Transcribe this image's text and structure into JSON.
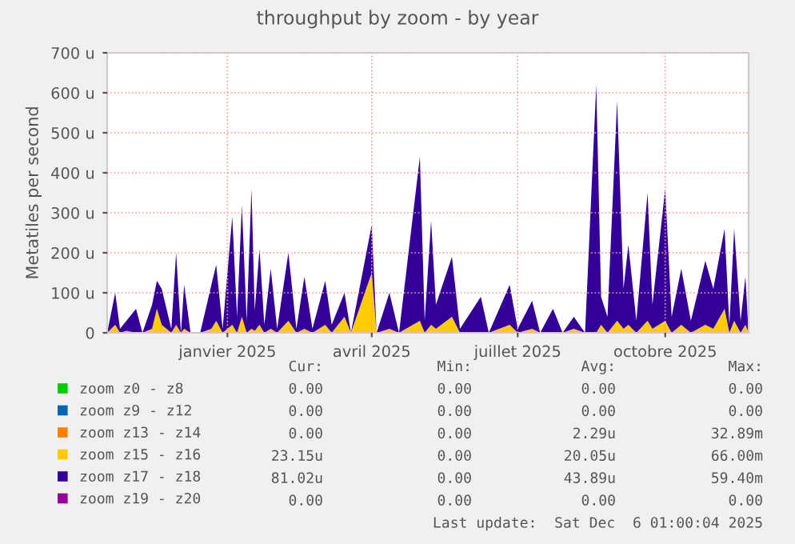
{
  "chart_data": {
    "type": "area",
    "stacked": true,
    "title": "throughput by zoom - by year",
    "ylabel": "Metatiles per second",
    "x": [
      "2024-11-01",
      "2024-11-06",
      "2024-11-09",
      "2024-11-13",
      "2024-11-19",
      "2024-11-23",
      "2024-11-29",
      "2024-12-02",
      "2024-12-05",
      "2024-12-11",
      "2024-12-14",
      "2024-12-17",
      "2024-12-19",
      "2024-12-23",
      "2024-12-29",
      "2025-01-05",
      "2025-01-08",
      "2025-01-12",
      "2025-01-18",
      "2025-01-21",
      "2025-01-24",
      "2025-01-27",
      "2025-01-30",
      "2025-02-01",
      "2025-02-04",
      "2025-02-07",
      "2025-02-11",
      "2025-02-15",
      "2025-02-22",
      "2025-02-27",
      "2025-03-04",
      "2025-03-09",
      "2025-03-17",
      "2025-03-21",
      "2025-03-29",
      "2025-04-02",
      "2025-04-15",
      "2025-04-18",
      "2025-04-26",
      "2025-05-02",
      "2025-05-15",
      "2025-05-18",
      "2025-05-22",
      "2025-05-25",
      "2025-06-04",
      "2025-06-09",
      "2025-06-22",
      "2025-06-27",
      "2025-07-10",
      "2025-07-15",
      "2025-07-24",
      "2025-07-29",
      "2025-08-06",
      "2025-08-12",
      "2025-08-19",
      "2025-08-26",
      "2025-09-02",
      "2025-09-05",
      "2025-09-09",
      "2025-09-15",
      "2025-09-19",
      "2025-09-22",
      "2025-09-27",
      "2025-10-04",
      "2025-10-07",
      "2025-10-15",
      "2025-10-19",
      "2025-10-25",
      "2025-10-31",
      "2025-11-09",
      "2025-11-14",
      "2025-11-21",
      "2025-11-24",
      "2025-11-27",
      "2025-12-01",
      "2025-12-04",
      "2025-12-06"
    ],
    "series": [
      {
        "name": "zoom z0 - z8",
        "color": "#00cc00",
        "values": [
          null,
          null,
          null,
          null,
          null,
          null,
          null,
          null,
          null,
          null,
          null,
          null,
          null,
          null,
          null,
          null,
          null,
          null,
          null,
          null,
          null,
          null,
          null,
          null,
          null,
          null,
          null,
          null,
          null,
          null,
          null,
          null,
          null,
          null,
          null,
          null,
          null,
          null,
          null,
          null,
          null,
          null,
          null,
          null,
          null,
          null,
          null,
          null,
          null,
          null,
          null,
          null,
          null,
          null,
          null,
          null,
          null,
          null,
          null,
          null,
          null,
          null,
          null,
          null,
          null,
          null,
          null,
          null,
          null,
          null,
          null,
          null,
          null,
          null,
          null,
          null,
          null
        ]
      },
      {
        "name": "zoom z9 - z12",
        "color": "#0066b3",
        "values": [
          null,
          null,
          null,
          null,
          null,
          null,
          null,
          null,
          null,
          null,
          null,
          null,
          null,
          null,
          null,
          null,
          null,
          null,
          null,
          null,
          null,
          null,
          null,
          null,
          null,
          null,
          null,
          null,
          null,
          null,
          null,
          null,
          null,
          null,
          null,
          null,
          null,
          null,
          null,
          null,
          null,
          null,
          null,
          null,
          null,
          null,
          null,
          null,
          null,
          null,
          null,
          null,
          null,
          null,
          null,
          null,
          null,
          null,
          null,
          null,
          null,
          null,
          null,
          null,
          null,
          null,
          null,
          null,
          null,
          null,
          null,
          null,
          null,
          null,
          null,
          null,
          null
        ]
      },
      {
        "name": "zoom z13 - z14",
        "color": "#ff8000",
        "values": [
          null,
          null,
          null,
          null,
          null,
          null,
          null,
          null,
          null,
          null,
          null,
          null,
          null,
          null,
          null,
          null,
          null,
          null,
          null,
          null,
          null,
          null,
          null,
          null,
          null,
          null,
          null,
          null,
          null,
          null,
          null,
          null,
          null,
          null,
          null,
          null,
          null,
          null,
          null,
          null,
          null,
          null,
          null,
          null,
          null,
          null,
          null,
          null,
          null,
          null,
          null,
          null,
          null,
          null,
          null,
          null,
          null,
          null,
          null,
          null,
          null,
          null,
          null,
          null,
          null,
          null,
          null,
          null,
          null,
          null,
          null,
          null,
          null,
          null,
          null,
          null,
          null
        ]
      },
      {
        "name": "zoom z15 - z16",
        "color": "#ffcc00",
        "values": [
          0,
          20,
          0,
          5,
          0,
          0,
          10,
          60,
          20,
          0,
          20,
          0,
          10,
          0,
          0,
          10,
          30,
          0,
          20,
          0,
          40,
          0,
          10,
          5,
          20,
          0,
          10,
          0,
          30,
          0,
          10,
          0,
          20,
          0,
          40,
          0,
          150,
          0,
          10,
          0,
          30,
          0,
          20,
          10,
          40,
          0,
          0,
          0,
          20,
          0,
          10,
          0,
          0,
          0,
          10,
          0,
          0,
          20,
          0,
          30,
          10,
          20,
          0,
          30,
          10,
          30,
          0,
          20,
          0,
          20,
          10,
          60,
          0,
          30,
          0,
          20,
          0
        ]
      },
      {
        "name": "zoom z17 - z18",
        "color": "#330099",
        "values": [
          0,
          80,
          10,
          25,
          60,
          0,
          60,
          70,
          90,
          10,
          180,
          0,
          110,
          0,
          0,
          110,
          140,
          10,
          270,
          40,
          280,
          30,
          350,
          50,
          190,
          20,
          150,
          10,
          170,
          10,
          130,
          10,
          110,
          20,
          60,
          0,
          120,
          0,
          90,
          0,
          410,
          30,
          260,
          60,
          150,
          10,
          90,
          0,
          100,
          10,
          70,
          0,
          60,
          0,
          30,
          0,
          620,
          70,
          40,
          550,
          100,
          200,
          30,
          320,
          60,
          330,
          40,
          140,
          30,
          160,
          100,
          200,
          20,
          230,
          30,
          120,
          0
        ]
      },
      {
        "name": "zoom z19 - z20",
        "color": "#990099",
        "values": [
          null,
          null,
          null,
          null,
          null,
          null,
          null,
          null,
          null,
          null,
          null,
          null,
          null,
          null,
          null,
          null,
          null,
          null,
          null,
          null,
          null,
          null,
          null,
          null,
          null,
          null,
          null,
          null,
          null,
          null,
          null,
          null,
          null,
          null,
          null,
          null,
          null,
          null,
          null,
          null,
          null,
          null,
          null,
          null,
          null,
          null,
          null,
          null,
          null,
          null,
          null,
          null,
          null,
          null,
          null,
          null,
          null,
          null,
          null,
          null,
          null,
          null,
          null,
          null,
          null,
          null,
          null,
          null,
          null,
          null,
          null,
          null,
          null,
          null,
          null,
          null,
          null
        ]
      }
    ],
    "xlim": [
      "2024-11-01",
      "2025-12-06"
    ],
    "xticks": [
      {
        "value": "2025-01-15",
        "label": "janvier 2025"
      },
      {
        "value": "2025-04-15",
        "label": "avril 2025"
      },
      {
        "value": "2025-07-15",
        "label": "juillet 2025"
      },
      {
        "value": "2025-10-15",
        "label": "octobre 2025"
      }
    ],
    "ylim": [
      0,
      700
    ],
    "yticks": [
      0,
      {
        "value": 100,
        "label": "100 u"
      },
      {
        "value": 200,
        "label": "200 u"
      },
      {
        "value": 300,
        "label": "300 u"
      },
      {
        "value": 400,
        "label": "400 u"
      },
      {
        "value": 500,
        "label": "500 u"
      },
      {
        "value": 600,
        "label": "600 u"
      },
      {
        "value": 700,
        "label": "700 u"
      }
    ],
    "grid": true,
    "legend": "bottom",
    "annotations": [
      "Cur:",
      "Min:",
      "Avg:",
      "Max:",
      "0.00",
      "0.00",
      "0.00",
      "0.00",
      "0.00",
      "0.00",
      "0.00",
      "0.00",
      "0.00",
      "0.00",
      "2.29u",
      "32.89m",
      "23.15u",
      "0.00",
      "20.05u",
      "66.00m",
      "81.02u",
      "0.00",
      "43.89u",
      "59.40m",
      "0.00",
      "0.00",
      "0.00",
      "0.00",
      "Last update:  Sat Dec  6 01:00:04 2025"
    ]
  }
}
